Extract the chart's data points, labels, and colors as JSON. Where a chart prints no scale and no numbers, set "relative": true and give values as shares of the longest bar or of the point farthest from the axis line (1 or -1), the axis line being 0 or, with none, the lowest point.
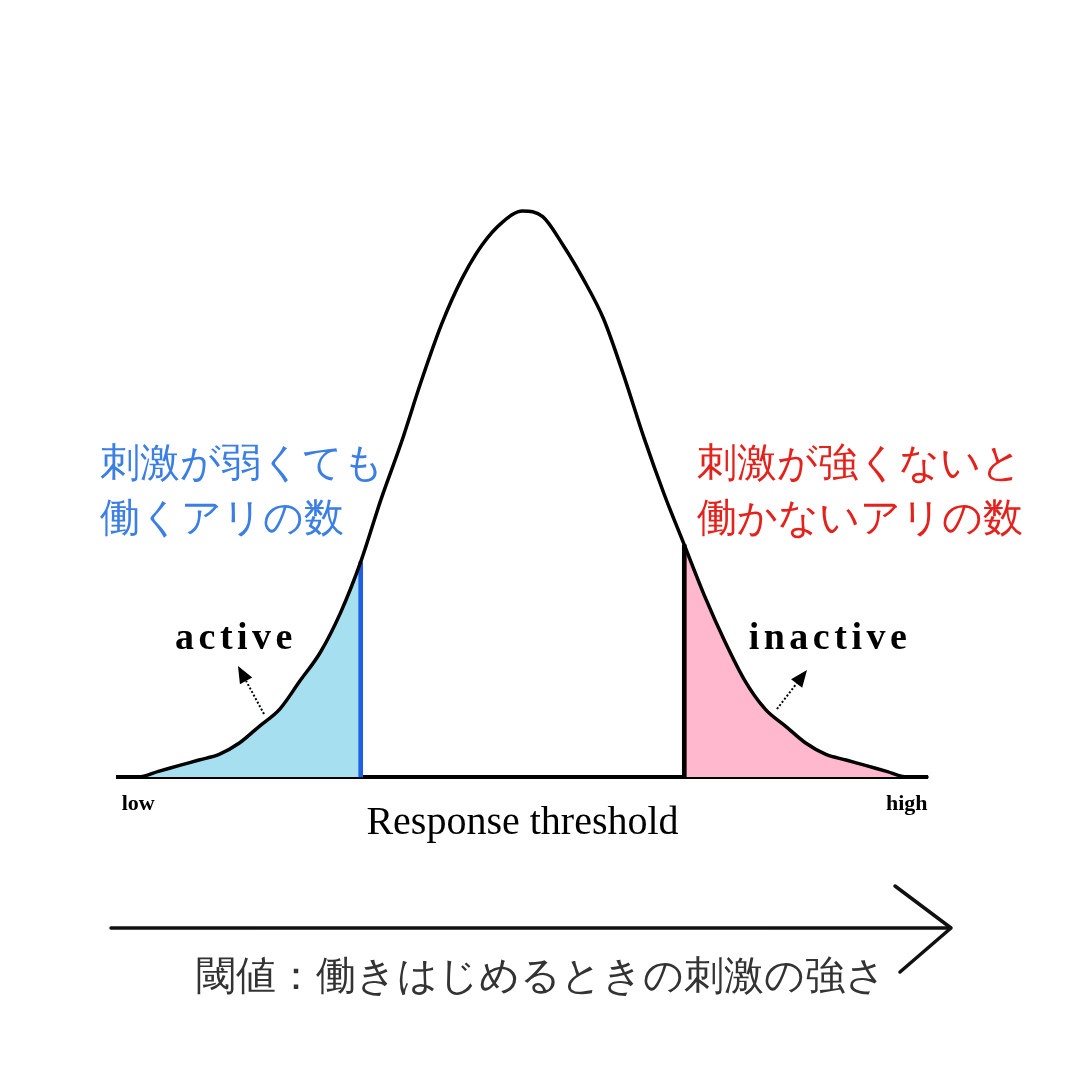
{
  "chart_data": {
    "type": "line",
    "relative": true,
    "xlabel": "Response threshold",
    "categories": [
      null,
      "low",
      null,
      null,
      null,
      null,
      null,
      null,
      null,
      null,
      null,
      null,
      null,
      null,
      null,
      null,
      null,
      null,
      null,
      null,
      null,
      null,
      null,
      null,
      null,
      null,
      null,
      null,
      null,
      null,
      null,
      null,
      null,
      null,
      null,
      null,
      null,
      null,
      null,
      "high",
      null
    ],
    "series": [
      {
        "color": "#000000",
        "values": [
          0,
          0,
          0.01,
          0.02,
          0.03,
          0.04,
          0.06,
          0.09,
          0.12,
          0.17,
          0.22,
          0.29,
          0.38,
          0.49,
          0.59,
          0.7,
          0.8,
          0.88,
          0.94,
          0.98,
          1,
          0.99,
          0.94,
          0.88,
          0.81,
          0.71,
          0.6,
          0.5,
          0.41,
          0.32,
          0.24,
          0.17,
          0.12,
          0.09,
          0.06,
          0.04,
          0.03,
          0.02,
          0.01,
          0,
          0
        ]
      },
      {
        "type": "bar",
        "color": "#1f5fe6",
        "values": [
          null,
          null,
          null,
          null,
          null,
          null,
          null,
          null,
          null,
          null,
          null,
          null,
          0.38,
          null,
          null,
          null,
          null,
          null,
          null,
          null,
          null,
          null,
          null,
          null,
          null,
          null,
          null,
          null,
          null,
          null,
          null,
          null,
          null,
          null,
          null,
          null,
          null,
          null,
          null,
          null,
          null
        ]
      },
      {
        "type": "bar",
        "color": "#000000",
        "values": [
          null,
          null,
          null,
          null,
          null,
          null,
          null,
          null,
          null,
          null,
          null,
          null,
          null,
          null,
          null,
          null,
          null,
          null,
          null,
          null,
          null,
          null,
          null,
          null,
          null,
          null,
          null,
          null,
          0.41,
          null,
          null,
          null,
          null,
          null,
          null,
          null,
          null,
          null,
          null,
          null,
          null
        ]
      },
      {
        "type": "area",
        "color": "#a6dff0",
        "values": [
          0,
          0,
          0.01,
          0.02,
          0.03,
          0.04,
          0.06,
          0.09,
          0.12,
          0.17,
          0.22,
          0.29,
          0.38,
          null,
          null,
          null,
          null,
          null,
          null,
          null,
          null,
          null,
          null,
          null,
          null,
          null,
          null,
          null,
          null,
          null,
          null,
          null,
          null,
          null,
          null,
          null,
          null,
          null,
          null,
          null,
          null
        ]
      },
      {
        "type": "area",
        "color": "#ffb8cd",
        "values": [
          null,
          null,
          null,
          null,
          null,
          null,
          null,
          null,
          null,
          null,
          null,
          null,
          null,
          null,
          null,
          null,
          null,
          null,
          null,
          null,
          null,
          null,
          null,
          null,
          null,
          null,
          null,
          null,
          0.41,
          0.32,
          0.24,
          0.17,
          0.12,
          0.09,
          0.06,
          0.04,
          0.03,
          0.02,
          0.01,
          0,
          0
        ]
      }
    ],
    "annotations": [
      "active",
      "inactive",
      "刺激が弱くても働くアリの数",
      "刺激が強くないと働かないアリの数",
      "閾値：働きはじめるときの刺激の強さ"
    ],
    "grid": false,
    "legend": false,
    "marker": "none",
    "line_style": "solid"
  }
}
